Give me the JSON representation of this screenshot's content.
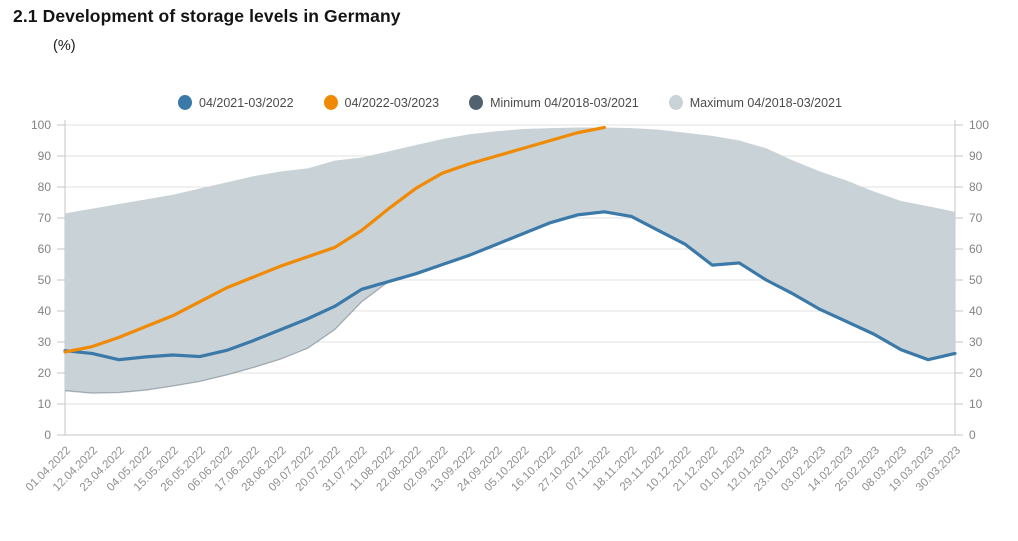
{
  "header": {
    "title": "2.1 Development of storage levels in Germany",
    "subtitle": "(%)"
  },
  "legend": [
    {
      "label": "04/2021-03/2022",
      "color": "#3b79a9"
    },
    {
      "label": "04/2022-03/2023",
      "color": "#f08a05"
    },
    {
      "label": "Minimum 04/2018-03/2021",
      "color": "#51626e"
    },
    {
      "label": "Maximum 04/2018-03/2021",
      "color": "#c9d2d7"
    }
  ],
  "chart_data": {
    "type": "line",
    "title": "2.1 Development of storage levels in Germany",
    "ylabel": "(%)",
    "ylim": [
      0,
      100
    ],
    "ytick_step": 10,
    "grid": true,
    "legend_position": "top",
    "y_axis_sides": "both",
    "band_fill_color": "#c9d2d7",
    "x_labels": [
      "01.04.2022",
      "12.04.2022",
      "23.04.2022",
      "04.05.2022",
      "15.05.2022",
      "26.05.2022",
      "06.06.2022",
      "17.06.2022",
      "28.06.2022",
      "09.07.2022",
      "20.07.2022",
      "31.07.2022",
      "11.08.2022",
      "22.08.2022",
      "02.09.2022",
      "13.09.2022",
      "24.09.2022",
      "05.10.2022",
      "16.10.2022",
      "27.10.2022",
      "07.11.2022",
      "18.11.2022",
      "29.11.2022",
      "10.12.2022",
      "21.12.2022",
      "01.01.2023",
      "12.01.2023",
      "23.01.2023",
      "03.02.2023",
      "14.02.2023",
      "25.02.2023",
      "08.03.2023",
      "19.03.2023",
      "30.03.2023"
    ],
    "series": [
      {
        "name": "Maximum 04/2018-03/2021",
        "role": "band-upper",
        "color": "#c9d2d7",
        "values": [
          71.5,
          73,
          74.5,
          76,
          77.5,
          79.5,
          81.5,
          83.5,
          85,
          86,
          88.5,
          89.5,
          91.5,
          93.5,
          95.5,
          97,
          98,
          98.7,
          99,
          99.2,
          99.2,
          99,
          98.5,
          97.5,
          96.5,
          95,
          92.5,
          88.5,
          85,
          82,
          78.5,
          75.5,
          73.8,
          72
        ]
      },
      {
        "name": "Minimum 04/2018-03/2021",
        "role": "band-lower",
        "color": "#51626e",
        "values": [
          14.3,
          13.5,
          13.7,
          14.5,
          15.8,
          17.3,
          19.4,
          21.8,
          24.5,
          28,
          34,
          43,
          49.5,
          52,
          55,
          58,
          61.5,
          65,
          68.5,
          71,
          72,
          70.5,
          66,
          61.5,
          54.8,
          55.5,
          50,
          45.5,
          40.5,
          36.5,
          32.5,
          27.5,
          24.3,
          26.3
        ]
      },
      {
        "name": "04/2021-03/2022",
        "role": "line",
        "color": "#3b79a9",
        "values": [
          27.2,
          26.3,
          24.3,
          25.2,
          25.8,
          25.3,
          27.3,
          30.5,
          34,
          37.5,
          41.5,
          47,
          49.5,
          52,
          55,
          58,
          61.5,
          65,
          68.5,
          71,
          72,
          70.5,
          66,
          61.5,
          54.8,
          55.5,
          50,
          45.5,
          40.5,
          36.5,
          32.5,
          27.5,
          24.3,
          26.3
        ]
      },
      {
        "name": "04/2022-03/2023",
        "role": "line",
        "color": "#f08a05",
        "values": [
          26.8,
          28.5,
          31.5,
          35,
          38.5,
          43,
          47.5,
          51,
          54.5,
          57.5,
          60.5,
          66,
          73,
          79.5,
          84.5,
          87.5,
          90,
          92.5,
          95,
          97.5,
          99.2
        ]
      }
    ]
  },
  "style": {
    "grid_color": "#e0e0e0",
    "axis_color": "#c6c6c6",
    "y_label_color": "#838383",
    "x_label_color": "#8f8f8f"
  }
}
